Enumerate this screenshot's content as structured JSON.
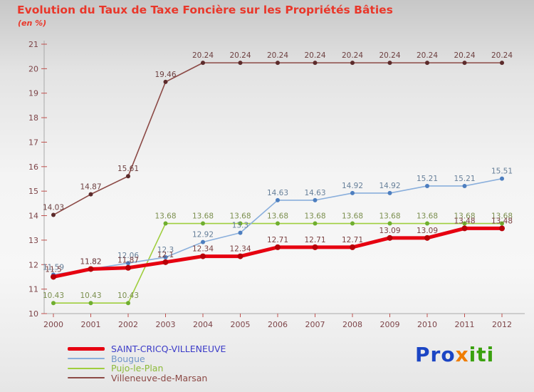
{
  "header": {
    "title": "Evolution du Taux de Taxe Foncière sur les Propriétés Bâties",
    "subtitle": "(en %)",
    "title_color": "#e9372a"
  },
  "chart_data": {
    "type": "line",
    "title": "Evolution du Taux de Taxe Foncière sur les Propriétés Bâties",
    "xlabel": "",
    "ylabel": "(en %)",
    "x": [
      2000,
      2001,
      2002,
      2003,
      2004,
      2005,
      2006,
      2007,
      2008,
      2009,
      2010,
      2011,
      2012
    ],
    "ylim": [
      10,
      21
    ],
    "ytick_step": 1,
    "grid": false,
    "legend_position": "bottom-left",
    "axis_label_color": "#7d4448",
    "axis_color": "#a9a9a9",
    "tick_color": "#c0504d",
    "series": [
      {
        "name": "SAINT-CRICQ-VILLENEUVE",
        "color": "#e60010",
        "marker": "#b80008",
        "label_color": "#7a4040",
        "width": 5,
        "values": [
          11.5,
          11.82,
          11.87,
          12.1,
          12.34,
          12.34,
          12.71,
          12.71,
          12.71,
          13.09,
          13.09,
          13.48,
          13.48
        ]
      },
      {
        "name": "Bougue",
        "color": "#8aafdc",
        "marker": "#4d7ebf",
        "label_color": "#667f99",
        "width": 1.6,
        "values": [
          11.59,
          11.82,
          12.06,
          12.3,
          12.92,
          13.3,
          14.63,
          14.63,
          14.92,
          14.92,
          15.21,
          15.21,
          15.51
        ]
      },
      {
        "name": "Pujo-le-Plan",
        "color": "#9fce3e",
        "marker": "#6fae2f",
        "label_color": "#7b8f4e",
        "width": 1.6,
        "values": [
          10.43,
          10.43,
          10.43,
          13.68,
          13.68,
          13.68,
          13.68,
          13.68,
          13.68,
          13.68,
          13.68,
          13.68,
          13.68
        ]
      },
      {
        "name": "Villeneuve-de-Marsan",
        "color": "#8c4a46",
        "marker": "#5c2b2b",
        "label_color": "#6d4040",
        "width": 1.6,
        "values": [
          14.03,
          14.87,
          15.61,
          19.46,
          20.24,
          20.24,
          20.24,
          20.24,
          20.24,
          20.24,
          20.24,
          20.24,
          20.24
        ]
      }
    ]
  },
  "legend": {
    "items": [
      {
        "label": "SAINT-CRICQ-VILLENEUVE",
        "text_color": "#3c3cc8",
        "line_color": "#e60010",
        "thick": true
      },
      {
        "label": "Bougue",
        "text_color": "#7195c8",
        "line_color": "#8aafdc",
        "thick": false
      },
      {
        "label": "Pujo-le-Plan",
        "text_color": "#8cba39",
        "line_color": "#9fce3e",
        "thick": false
      },
      {
        "label": "Villeneuve-de-Marsan",
        "text_color": "#8c4a46",
        "line_color": "#8c4a46",
        "thick": false
      }
    ]
  },
  "logo": {
    "letters": [
      {
        "ch": "P",
        "color": "#1b45c4"
      },
      {
        "ch": "r",
        "color": "#1b45c4"
      },
      {
        "ch": "o",
        "color": "#1b45c4"
      },
      {
        "ch": "x",
        "color": "#f07d00"
      },
      {
        "ch": "i",
        "color": "#3aa10e"
      },
      {
        "ch": "t",
        "color": "#3aa10e"
      },
      {
        "ch": "i",
        "color": "#3aa10e"
      }
    ]
  }
}
